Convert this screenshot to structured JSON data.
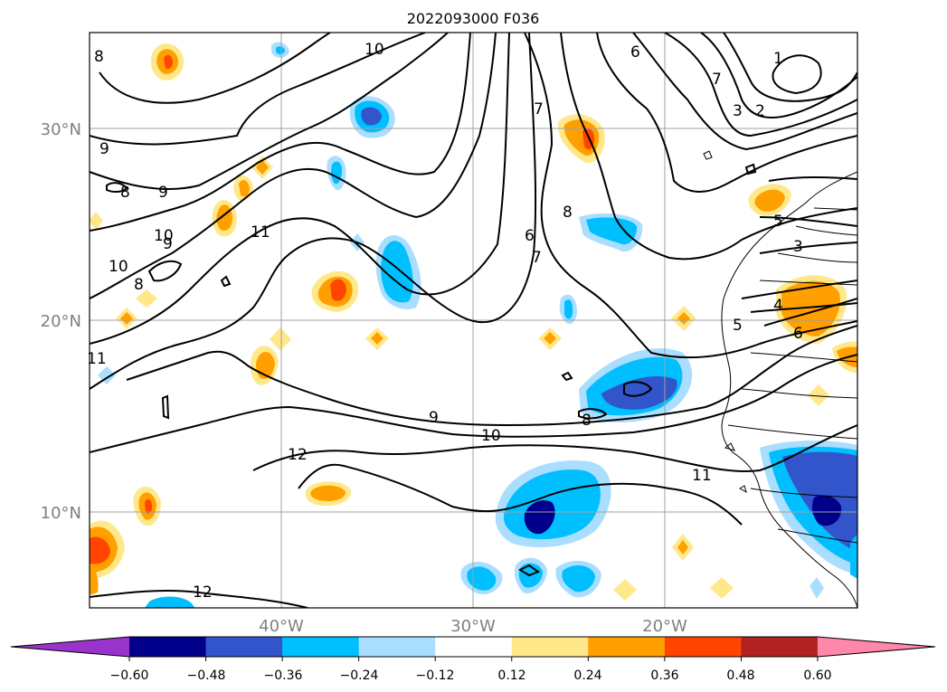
{
  "title": "2022093000 F036",
  "map": {
    "lat_labels": [
      "30°N",
      "20°N",
      "10°N"
    ],
    "lon_labels": [
      "40°W",
      "30°W",
      "20°W"
    ],
    "contour_labels": [
      "8",
      "10",
      "6",
      "7",
      "1",
      "9",
      "2",
      "3",
      "9",
      "8",
      "10",
      "11",
      "7",
      "8",
      "6",
      "10",
      "9",
      "7",
      "8",
      "5",
      "3",
      "11",
      "4",
      "5",
      "6",
      "9",
      "10",
      "8",
      "12",
      "11",
      "12"
    ]
  },
  "colorbar": {
    "ticks": [
      "−0.60",
      "−0.48",
      "−0.36",
      "−0.24",
      "−0.12",
      "0.12",
      "0.24",
      "0.36",
      "0.48",
      "0.60"
    ],
    "colors": [
      "#9933cc",
      "#00008b",
      "#3355cc",
      "#00bfff",
      "#aadeff",
      "#ffffff",
      "#ffe88a",
      "#ff9f00",
      "#ff4500",
      "#b22222",
      "#ff88aa"
    ]
  },
  "colors": {
    "contour": "#000000",
    "tick_label": "#808080",
    "grid": "#a0a0a0"
  }
}
